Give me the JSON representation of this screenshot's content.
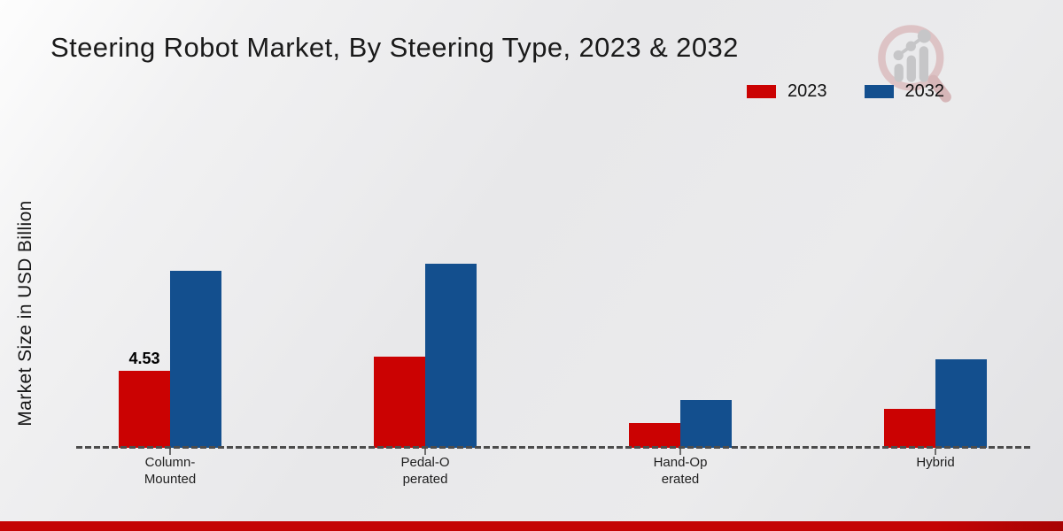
{
  "page": {
    "title": "Steering Robot Market, By Steering Type, 2023 & 2032",
    "footer_accent_color": "#c40404"
  },
  "legend": {
    "position": "top-right",
    "items": [
      {
        "label": "2023",
        "color": "#cb0202"
      },
      {
        "label": "2032",
        "color": "#134f8e"
      }
    ]
  },
  "watermark": {
    "icon": "magnifier-bar-chart-logo-icon"
  },
  "chart_data": {
    "type": "bar",
    "title": "Steering Robot Market, By Steering Type, 2023 & 2032",
    "xlabel": "",
    "ylabel": "Market Size in USD Billion",
    "categories": [
      "Column-Mounted",
      "Pedal-Operated",
      "Hand-Operated",
      "Hybrid"
    ],
    "category_display_lines": [
      [
        "Column-",
        "Mounted"
      ],
      [
        "Pedal-O",
        "perated"
      ],
      [
        "Hand-Op",
        "erated"
      ],
      [
        "Hybrid"
      ]
    ],
    "series": [
      {
        "name": "2023",
        "color": "#cb0202",
        "values": [
          4.53,
          5.35,
          1.45,
          2.3
        ]
      },
      {
        "name": "2032",
        "color": "#134f8e",
        "values": [
          10.4,
          10.85,
          2.8,
          5.2
        ]
      }
    ],
    "data_labels": [
      {
        "series_index": 0,
        "category_index": 0,
        "text": "4.53"
      }
    ],
    "ylim": [
      0,
      11.5
    ],
    "grid": false,
    "baseline_style": "dashed",
    "legend_position": "top-right"
  }
}
